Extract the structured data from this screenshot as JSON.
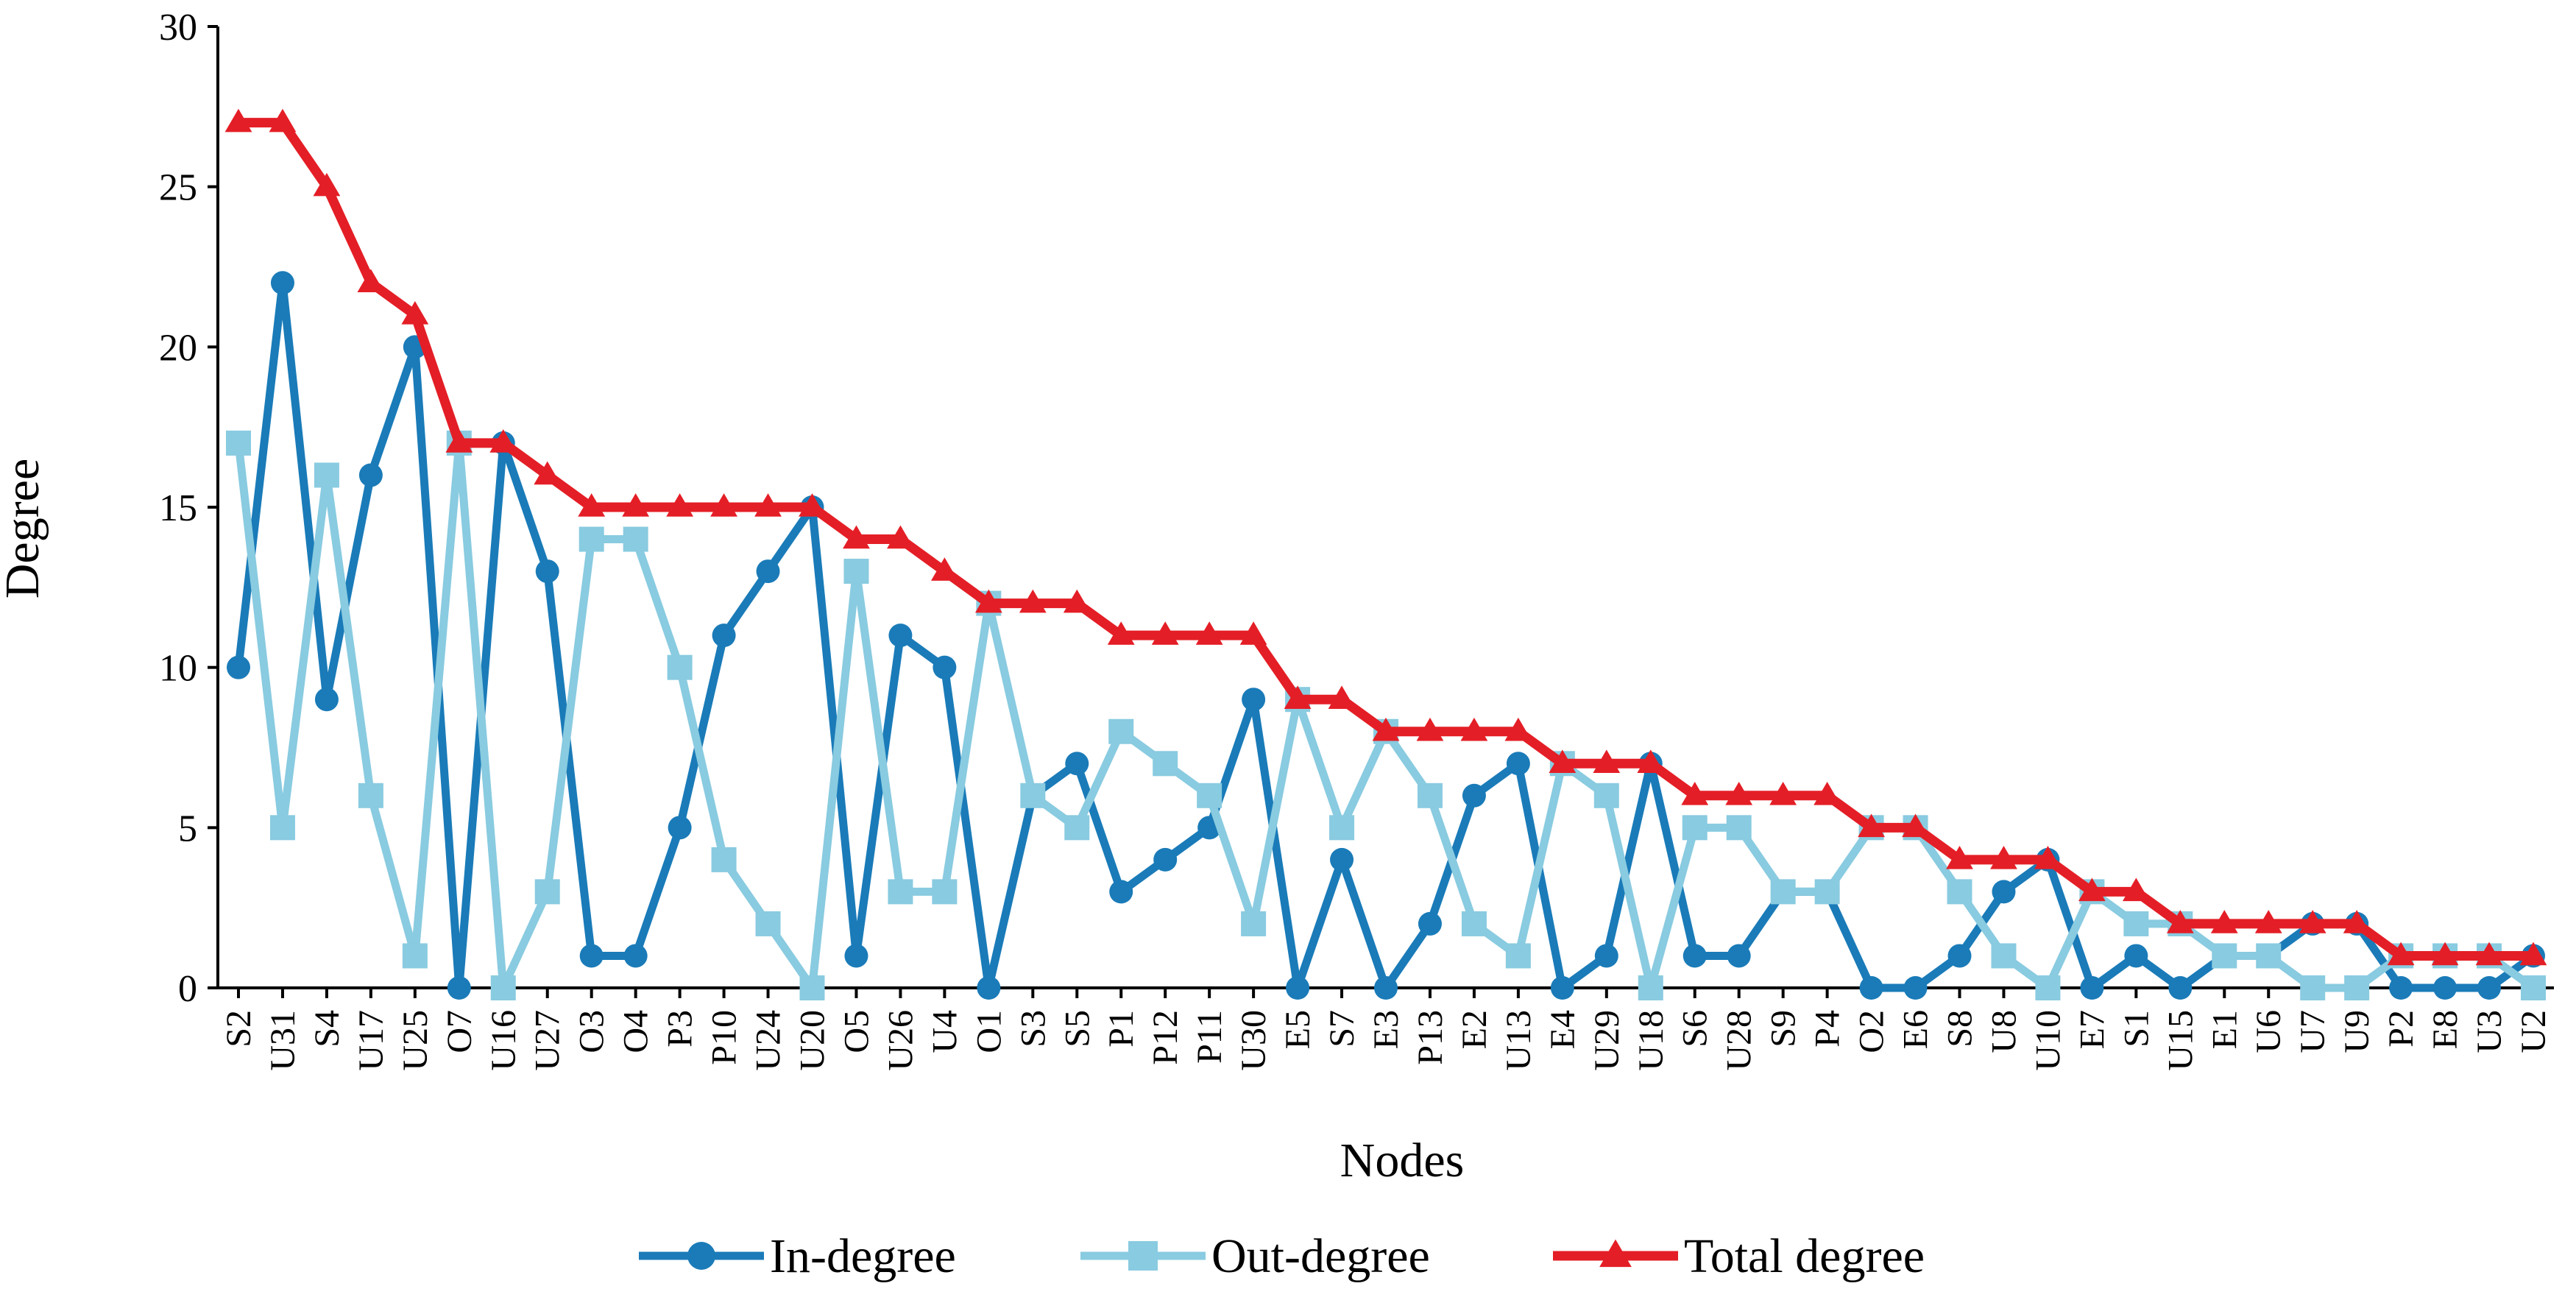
{
  "chart_data": {
    "type": "line",
    "title": "",
    "xlabel": "Nodes",
    "ylabel": "Degree",
    "ylim": [
      0,
      30
    ],
    "yticks": [
      0,
      5,
      10,
      15,
      20,
      25,
      30
    ],
    "grid": false,
    "legend_position": "bottom",
    "categories": [
      "S2",
      "U31",
      "S4",
      "U17",
      "U25",
      "O7",
      "U16",
      "U27",
      "O3",
      "O4",
      "P3",
      "P10",
      "U24",
      "U20",
      "O5",
      "U26",
      "U4",
      "O1",
      "S3",
      "S5",
      "P1",
      "P12",
      "P11",
      "U30",
      "E5",
      "S7",
      "E3",
      "P13",
      "E2",
      "U13",
      "E4",
      "U29",
      "U18",
      "S6",
      "U28",
      "S9",
      "P4",
      "O2",
      "E6",
      "S8",
      "U8",
      "U10",
      "E7",
      "S1",
      "U15",
      "E1",
      "U6",
      "U7",
      "U9",
      "P2",
      "E8",
      "U3",
      "U2"
    ],
    "series": [
      {
        "name": "In-degree",
        "color": "#1a7bb8",
        "marker": "circle",
        "values": [
          10,
          22,
          9,
          16,
          20,
          0,
          17,
          13,
          1,
          1,
          5,
          11,
          13,
          15,
          1,
          11,
          10,
          0,
          6,
          7,
          3,
          4,
          5,
          9,
          0,
          4,
          0,
          2,
          6,
          7,
          0,
          1,
          7,
          1,
          1,
          3,
          3,
          0,
          0,
          1,
          3,
          4,
          0,
          1,
          0,
          1,
          1,
          2,
          2,
          0,
          0,
          0,
          1
        ]
      },
      {
        "name": "Out-degree",
        "color": "#89cbe0",
        "marker": "square",
        "values": [
          17,
          5,
          16,
          6,
          1,
          17,
          0,
          3,
          14,
          14,
          10,
          4,
          2,
          0,
          13,
          3,
          3,
          12,
          6,
          5,
          8,
          7,
          6,
          2,
          9,
          5,
          8,
          6,
          2,
          1,
          7,
          6,
          0,
          5,
          5,
          3,
          3,
          5,
          5,
          3,
          1,
          0,
          3,
          2,
          2,
          1,
          1,
          0,
          0,
          1,
          1,
          1,
          0
        ]
      },
      {
        "name": "Total degree",
        "color": "#e41e26",
        "marker": "triangle",
        "values": [
          27,
          27,
          25,
          22,
          21,
          17,
          17,
          16,
          15,
          15,
          15,
          15,
          15,
          15,
          14,
          14,
          13,
          12,
          12,
          12,
          11,
          11,
          11,
          11,
          9,
          9,
          8,
          8,
          8,
          8,
          7,
          7,
          7,
          6,
          6,
          6,
          6,
          5,
          5,
          4,
          4,
          4,
          3,
          3,
          2,
          2,
          2,
          2,
          2,
          1,
          1,
          1,
          1
        ]
      }
    ]
  }
}
